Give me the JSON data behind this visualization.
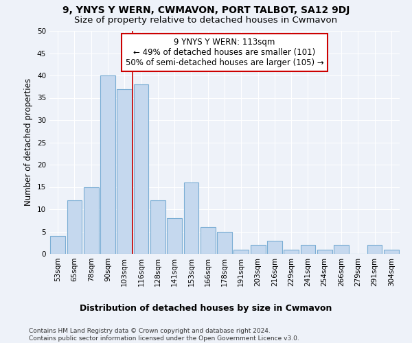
{
  "title": "9, YNYS Y WERN, CWMAVON, PORT TALBOT, SA12 9DJ",
  "subtitle": "Size of property relative to detached houses in Cwmavon",
  "xlabel_bottom": "Distribution of detached houses by size in Cwmavon",
  "ylabel": "Number of detached properties",
  "categories": [
    "53sqm",
    "65sqm",
    "78sqm",
    "90sqm",
    "103sqm",
    "116sqm",
    "128sqm",
    "141sqm",
    "153sqm",
    "166sqm",
    "178sqm",
    "191sqm",
    "203sqm",
    "216sqm",
    "229sqm",
    "241sqm",
    "254sqm",
    "266sqm",
    "279sqm",
    "291sqm",
    "304sqm"
  ],
  "values": [
    4,
    12,
    15,
    40,
    37,
    38,
    12,
    8,
    16,
    6,
    5,
    1,
    2,
    3,
    1,
    2,
    1,
    2,
    0,
    2,
    1
  ],
  "bar_color": "#c5d8ee",
  "bar_edge_color": "#7aadd4",
  "annotation_box_text": "9 YNYS Y WERN: 113sqm\n← 49% of detached houses are smaller (101)\n50% of semi-detached houses are larger (105) →",
  "annotation_box_color": "#ffffff",
  "annotation_box_edge_color": "#cc0000",
  "vline_color": "#cc0000",
  "vline_x": 4.5,
  "ylim": [
    0,
    50
  ],
  "yticks": [
    0,
    5,
    10,
    15,
    20,
    25,
    30,
    35,
    40,
    45,
    50
  ],
  "footer_text": "Contains HM Land Registry data © Crown copyright and database right 2024.\nContains public sector information licensed under the Open Government Licence v3.0.",
  "bg_color": "#eef2f9",
  "grid_color": "#ffffff",
  "title_fontsize": 10,
  "subtitle_fontsize": 9.5,
  "ylabel_fontsize": 8.5,
  "xlabel_bottom_fontsize": 9,
  "tick_fontsize": 7.5,
  "footer_fontsize": 6.5,
  "annotation_fontsize": 8.5
}
